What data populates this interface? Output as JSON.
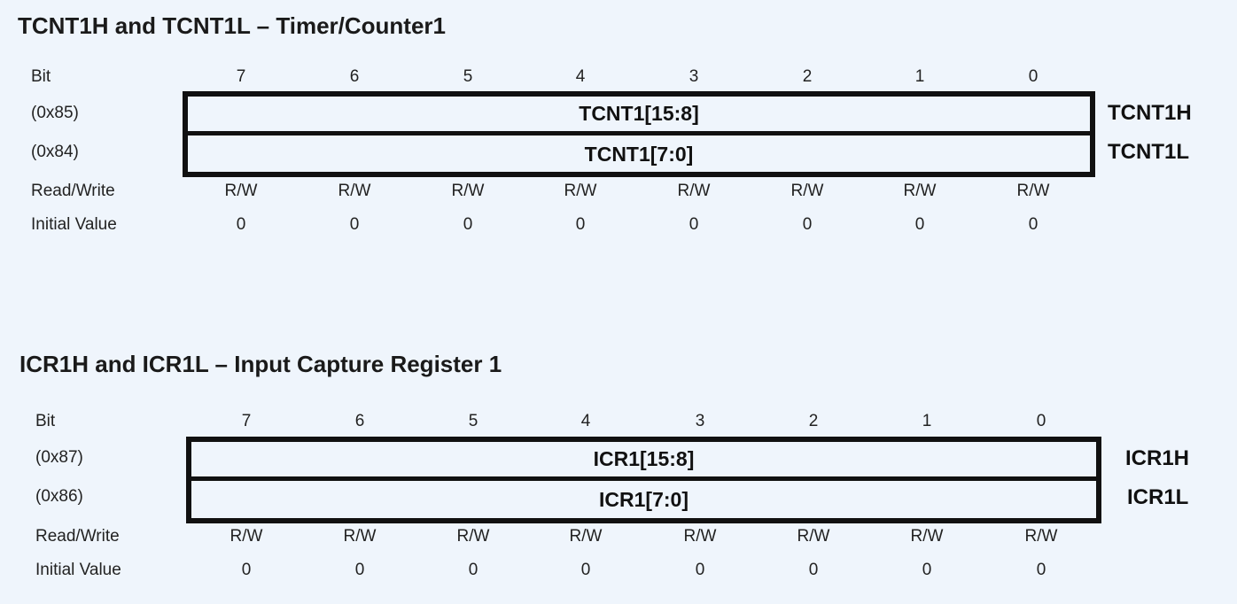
{
  "sections": [
    {
      "title": "TCNT1H and TCNT1L – Timer/Counter1",
      "bit_label": "Bit",
      "bits": [
        "7",
        "6",
        "5",
        "4",
        "3",
        "2",
        "1",
        "0"
      ],
      "registers": [
        {
          "address": "(0x85)",
          "field": "TCNT1[15:8]",
          "name": "TCNT1H"
        },
        {
          "address": "(0x84)",
          "field": "TCNT1[7:0]",
          "name": "TCNT1L"
        }
      ],
      "rw_label": "Read/Write",
      "rw": [
        "R/W",
        "R/W",
        "R/W",
        "R/W",
        "R/W",
        "R/W",
        "R/W",
        "R/W"
      ],
      "init_label": "Initial Value",
      "init": [
        "0",
        "0",
        "0",
        "0",
        "0",
        "0",
        "0",
        "0"
      ]
    },
    {
      "title": "ICR1H and ICR1L – Input Capture Register 1",
      "bit_label": "Bit",
      "bits": [
        "7",
        "6",
        "5",
        "4",
        "3",
        "2",
        "1",
        "0"
      ],
      "registers": [
        {
          "address": "(0x87)",
          "field": "ICR1[15:8]",
          "name": "ICR1H"
        },
        {
          "address": "(0x86)",
          "field": "ICR1[7:0]",
          "name": "ICR1L"
        }
      ],
      "rw_label": "Read/Write",
      "rw": [
        "R/W",
        "R/W",
        "R/W",
        "R/W",
        "R/W",
        "R/W",
        "R/W",
        "R/W"
      ],
      "init_label": "Initial Value",
      "init": [
        "0",
        "0",
        "0",
        "0",
        "0",
        "0",
        "0",
        "0"
      ]
    }
  ]
}
